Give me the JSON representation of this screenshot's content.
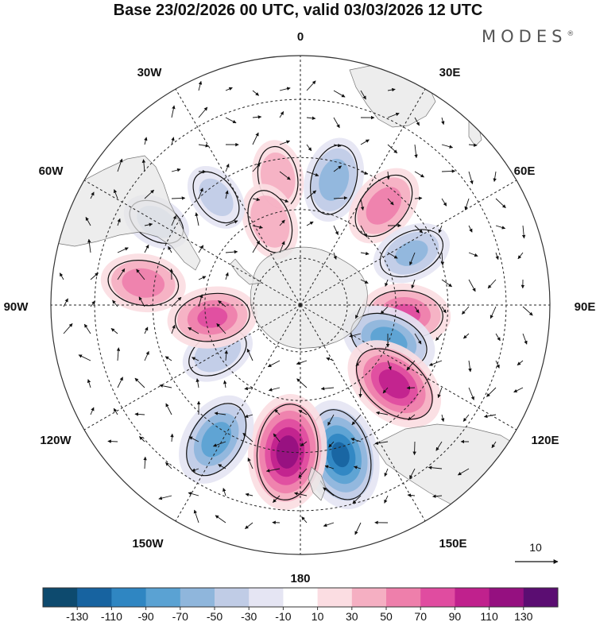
{
  "title": "Base 23/02/2026 00 UTC, valid 03/03/2026 12 UTC",
  "brand": "MODES",
  "brand_mark": "®",
  "longitude_labels": {
    "top": "0",
    "lon30e": "30E",
    "lon60e": "60E",
    "right": "90E",
    "lon120e": "120E",
    "lon150e": "150E",
    "bottom": "180",
    "lon150w": "150W",
    "lon120w": "120W",
    "left": "90W",
    "lon60w": "60W",
    "lon30w": "30W"
  },
  "vector_key": {
    "label": "10"
  },
  "colorbar": {
    "tick_labels": [
      "-130",
      "-110",
      "-90",
      "-70",
      "-50",
      "-30",
      "-10",
      "10",
      "30",
      "50",
      "70",
      "90",
      "110",
      "130"
    ],
    "colors": [
      "#0d4a6e",
      "#1763a0",
      "#2f86c2",
      "#5aa2d3",
      "#8fb6dc",
      "#c0cce6",
      "#e5e5f3",
      "#ffffff",
      "#fbdde2",
      "#f5afc2",
      "#ee7fab",
      "#e04ca0",
      "#c0218d",
      "#951080",
      "#5b0d72"
    ]
  },
  "colors": {
    "land": "#e7e7e7",
    "frame": "#333333"
  },
  "map_data": {
    "projection": "south polar stereographic",
    "anomalies": [
      {
        "lon": -10,
        "lat": -50,
        "value": 40
      },
      {
        "lon": -20,
        "lat": -62,
        "value": 45
      },
      {
        "lon": 15,
        "lat": -50,
        "value": -60
      },
      {
        "lon": 40,
        "lat": -50,
        "value": 60
      },
      {
        "lon": 65,
        "lat": -52,
        "value": -50
      },
      {
        "lon": 95,
        "lat": -57,
        "value": 70
      },
      {
        "lon": 112,
        "lat": -60,
        "value": -80
      },
      {
        "lon": 130,
        "lat": -52,
        "value": 100
      },
      {
        "lon": 165,
        "lat": -43,
        "value": -110
      },
      {
        "lon": -175,
        "lat": -45,
        "value": 120
      },
      {
        "lon": -148,
        "lat": -42,
        "value": -80
      },
      {
        "lon": -120,
        "lat": -60,
        "value": -40
      },
      {
        "lon": -98,
        "lat": -62,
        "value": 70
      },
      {
        "lon": -82,
        "lat": -42,
        "value": 60
      },
      {
        "lon": -60,
        "lat": -40,
        "value": -30
      },
      {
        "lon": -38,
        "lat": -48,
        "value": -30
      }
    ]
  }
}
